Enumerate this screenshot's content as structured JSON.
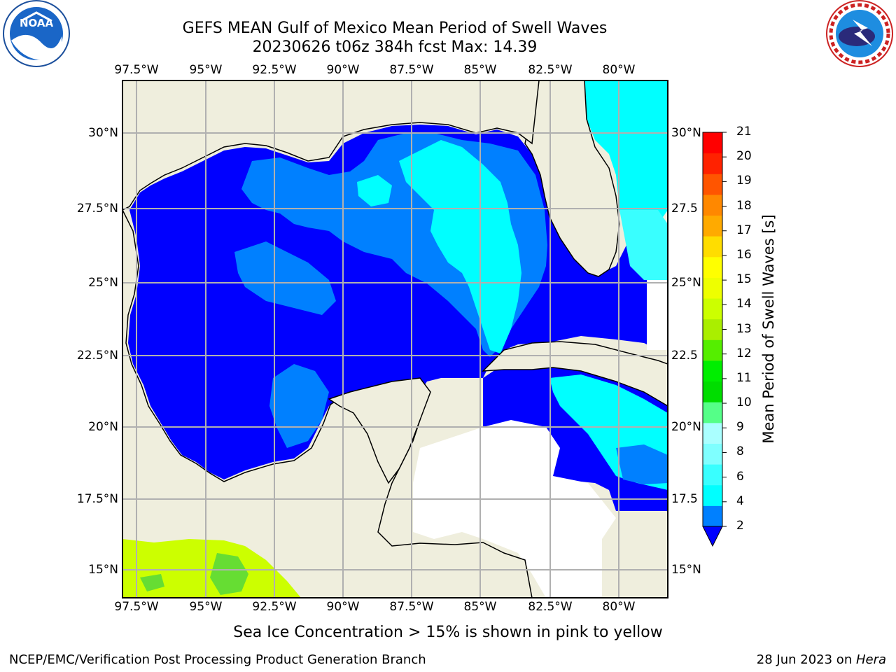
{
  "header": {
    "title_line1": "GEFS MEAN Gulf of Mexico Mean Period of Swell Waves",
    "title_line2": "20230626 t06z 384h fcst   Max: 14.39"
  },
  "logos": {
    "left": {
      "name": "noaa-logo",
      "text": "NOAA"
    },
    "right": {
      "name": "national-weather-service-logo"
    }
  },
  "map": {
    "lon_labels": [
      "97.5°W",
      "95°W",
      "92.5°W",
      "90°W",
      "87.5°W",
      "85°W",
      "82.5°W",
      "80°W"
    ],
    "lat_labels_left": [
      "30°N",
      "27.5°N",
      "25°N",
      "22.5°N",
      "20°N",
      "17.5°N",
      "15°N"
    ],
    "lat_labels_right": [
      "30°N",
      "27.5",
      "25°N",
      "22.5",
      "20°N",
      "17.5",
      "15°N"
    ],
    "colors": {
      "land": "#efeedd",
      "ocean_deep": "#0000ff",
      "ocean_mid": "#0080ff",
      "ocean_light": "#00ffff",
      "pale_cyan": "#39ffff",
      "ice_green": "#ccff00",
      "ice_green2": "#66dd33",
      "grid": "#b0b0b0"
    }
  },
  "colorbar": {
    "label": "Mean Period of Swell Waves [s]",
    "ticks": [
      "21",
      "20",
      "19",
      "18",
      "17",
      "16",
      "15",
      "14",
      "13",
      "12",
      "11",
      "10",
      "9",
      "8",
      "6",
      "4",
      "2"
    ],
    "colors": [
      "#0080ff",
      "#00ffff",
      "#39ffff",
      "#7fffff",
      "#aaffff",
      "#55ff88",
      "#00dd00",
      "#00ee00",
      "#55ee00",
      "#aaee00",
      "#ccff00",
      "#eeff00",
      "#ffff00",
      "#ffdd00",
      "#ffaa00",
      "#ff8800",
      "#ff5500",
      "#ff2200",
      "#ff0000"
    ]
  },
  "caption": "Sea Ice Concentration > 15% is shown in pink to yellow",
  "footer": {
    "left": "NCEP/EMC/Verification Post Processing Product Generation Branch",
    "right_date": "28 Jun 2023 on ",
    "right_host": "Hera"
  }
}
